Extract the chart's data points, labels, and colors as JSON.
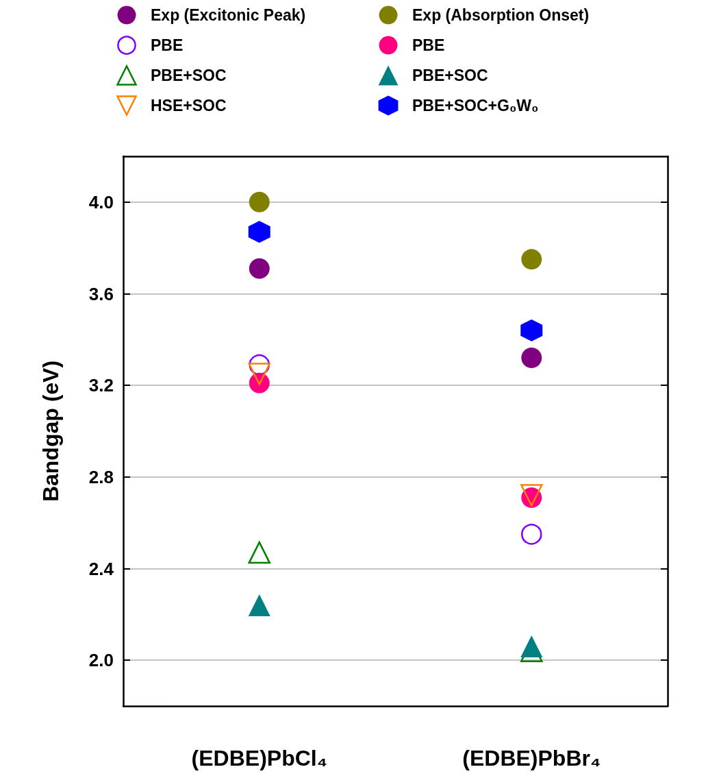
{
  "chart_data": {
    "type": "scatter",
    "ylabel": "Bandgap (eV)",
    "categories": [
      "(EDBE)PbCl₄",
      "(EDBE)PbBr₄"
    ],
    "ylim": [
      1.8,
      4.2
    ],
    "yticks": [
      {
        "value": 2,
        "label": "2.0"
      },
      {
        "value": 2.4,
        "label": "2.4"
      },
      {
        "value": 2.8,
        "label": "2.8"
      },
      {
        "value": 3.2,
        "label": "3.2"
      },
      {
        "value": 3.6,
        "label": "3.6"
      },
      {
        "value": 4,
        "label": "4.0"
      }
    ],
    "grid": "y",
    "legend": "top",
    "series": [
      {
        "name": "Exp (Excitonic Peak)",
        "color": "#800080",
        "marker": "circle",
        "values": [
          3.71,
          3.32
        ]
      },
      {
        "name": "Exp (Absorption Onset)",
        "color": "#808000",
        "marker": "circle",
        "values": [
          4.0,
          3.75
        ]
      },
      {
        "name": "PBE",
        "color": "#8000ff",
        "marker": "circle-open",
        "values": [
          3.29,
          2.55
        ]
      },
      {
        "name": "PBE",
        "color": "#ff0080",
        "marker": "circle",
        "values": [
          3.21,
          2.71
        ]
      },
      {
        "name": "PBE+SOC",
        "color": "#008000",
        "marker": "triangle-open",
        "values": [
          2.47,
          2.04
        ]
      },
      {
        "name": "PBE+SOC",
        "color": "#008080",
        "marker": "triangle",
        "values": [
          2.24,
          2.06
        ]
      },
      {
        "name": "HSE+SOC",
        "color": "#ff8000",
        "marker": "triangle-down-open",
        "values": [
          3.25,
          2.72
        ]
      },
      {
        "name": "PBE+SOC+G₀W₀",
        "color": "#0000ff",
        "values": [
          3.87,
          3.44
        ]
      }
    ]
  }
}
